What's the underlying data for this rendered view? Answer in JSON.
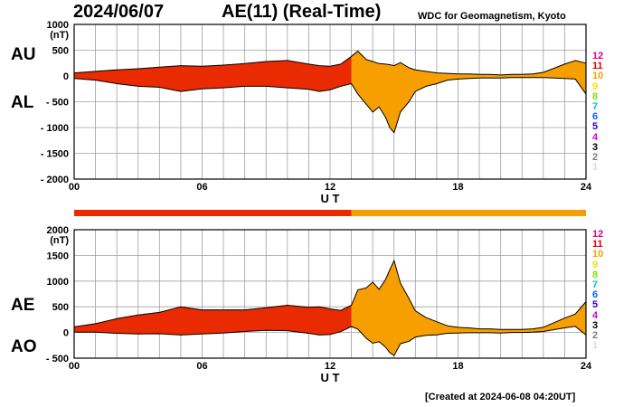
{
  "header": {
    "date": "2024/06/07",
    "index_title": "AE(11) (Real-Time)",
    "source": "WDC for Geomagnetism, Kyoto"
  },
  "footer": {
    "created": "[Created at 2024-06-08 04:20UT]"
  },
  "labels": {
    "au": "AU",
    "al": "AL",
    "ae": "AE",
    "ao": "AO",
    "ut": "U T",
    "unit": "(nT)"
  },
  "legend": {
    "items": [
      {
        "label": "12",
        "color": "#e6007e"
      },
      {
        "label": "11",
        "color": "#e60000"
      },
      {
        "label": "10",
        "color": "#f5a000"
      },
      {
        "label": "9",
        "color": "#f0e000"
      },
      {
        "label": "8",
        "color": "#86dc00"
      },
      {
        "label": "7",
        "color": "#00c8c8"
      },
      {
        "label": "6",
        "color": "#0064ff"
      },
      {
        "label": "5",
        "color": "#2800c8"
      },
      {
        "label": "4",
        "color": "#c800dc"
      },
      {
        "label": "3",
        "color": "#000000"
      },
      {
        "label": "2",
        "color": "#7c7c7c"
      },
      {
        "label": "1",
        "color": "#dcdcdc"
      }
    ]
  },
  "colors": {
    "stations_12": "#ea2a00",
    "stations_10": "#f79e00",
    "grid": "#a0a0a0"
  },
  "chart_data": [
    {
      "type": "area",
      "title": "AU / AL",
      "xlabel": "U T",
      "ylabel": "(nT)",
      "xlim": [
        0,
        24
      ],
      "ylim": [
        -2000,
        1000
      ],
      "yticks": [
        1000,
        500,
        0,
        -500,
        -1000,
        -1500,
        -2000
      ],
      "xticks": [
        0,
        6,
        12,
        18,
        24
      ],
      "xtick_labels": [
        "00",
        "06",
        "12",
        "18",
        "24"
      ],
      "ytick_labels": [
        "1000",
        "500",
        "0",
        "- 500",
        "- 1000",
        "- 1500",
        "- 2000"
      ],
      "x": [
        0,
        1,
        2,
        3,
        4,
        5,
        6,
        7,
        8,
        9,
        10,
        11,
        11.5,
        12,
        12.5,
        13,
        13.3,
        13.7,
        14,
        14.3,
        14.6,
        14.8,
        15,
        15.3,
        15.7,
        16,
        16.5,
        17,
        17.5,
        18,
        18.5,
        19,
        19.5,
        20,
        20.5,
        21,
        21.5,
        22,
        22.5,
        23,
        23.5,
        24
      ],
      "series": [
        {
          "name": "AU",
          "values": [
            60,
            90,
            120,
            140,
            170,
            200,
            190,
            210,
            240,
            280,
            300,
            230,
            200,
            190,
            230,
            380,
            480,
            320,
            280,
            240,
            230,
            220,
            200,
            260,
            160,
            120,
            90,
            60,
            50,
            40,
            40,
            30,
            30,
            20,
            30,
            30,
            40,
            70,
            150,
            230,
            300,
            250
          ]
        },
        {
          "name": "AL",
          "values": [
            -50,
            -80,
            -150,
            -200,
            -220,
            -300,
            -250,
            -230,
            -200,
            -200,
            -230,
            -260,
            -300,
            -270,
            -200,
            -150,
            -350,
            -550,
            -700,
            -600,
            -800,
            -1000,
            -1100,
            -700,
            -500,
            -300,
            -200,
            -150,
            -80,
            -60,
            -50,
            -40,
            -40,
            -40,
            -30,
            -30,
            -30,
            -30,
            -40,
            -50,
            -60,
            -350
          ]
        }
      ]
    },
    {
      "type": "area",
      "title": "AE / AO",
      "xlabel": "U T",
      "ylabel": "(nT)",
      "xlim": [
        0,
        24
      ],
      "ylim": [
        -500,
        2000
      ],
      "yticks": [
        2000,
        1500,
        1000,
        500,
        0,
        -500
      ],
      "xticks": [
        0,
        6,
        12,
        18,
        24
      ],
      "xtick_labels": [
        "00",
        "06",
        "12",
        "18",
        "24"
      ],
      "ytick_labels": [
        "2000",
        "1500",
        "1000",
        "500",
        "0",
        "- 500"
      ],
      "x": [
        0,
        1,
        2,
        3,
        4,
        5,
        6,
        7,
        8,
        9,
        10,
        11,
        11.5,
        12,
        12.5,
        13,
        13.3,
        13.7,
        14,
        14.3,
        14.6,
        14.8,
        15,
        15.3,
        15.7,
        16,
        16.5,
        17,
        17.5,
        18,
        18.5,
        19,
        19.5,
        20,
        20.5,
        21,
        21.5,
        22,
        22.5,
        23,
        23.5,
        24
      ],
      "series": [
        {
          "name": "AE",
          "values": [
            110,
            170,
            270,
            340,
            390,
            500,
            440,
            440,
            440,
            480,
            530,
            490,
            500,
            460,
            430,
            530,
            830,
            870,
            980,
            840,
            1030,
            1220,
            1400,
            960,
            660,
            420,
            290,
            210,
            130,
            100,
            90,
            70,
            70,
            60,
            60,
            60,
            70,
            100,
            190,
            280,
            360,
            600
          ]
        },
        {
          "name": "AO",
          "values": [
            5,
            5,
            -15,
            -30,
            -25,
            -50,
            -30,
            -10,
            20,
            40,
            35,
            -15,
            -50,
            -40,
            15,
            115,
            65,
            -115,
            -210,
            -180,
            -285,
            -390,
            -450,
            -220,
            -170,
            -90,
            -55,
            -45,
            -15,
            -10,
            -5,
            -5,
            -5,
            -10,
            0,
            0,
            5,
            20,
            55,
            90,
            120,
            -50
          ]
        }
      ]
    }
  ],
  "station_bar": {
    "segments": [
      {
        "from": 0,
        "to": 13,
        "stations": "12"
      },
      {
        "from": 13,
        "to": 24,
        "stations": "10"
      }
    ]
  }
}
